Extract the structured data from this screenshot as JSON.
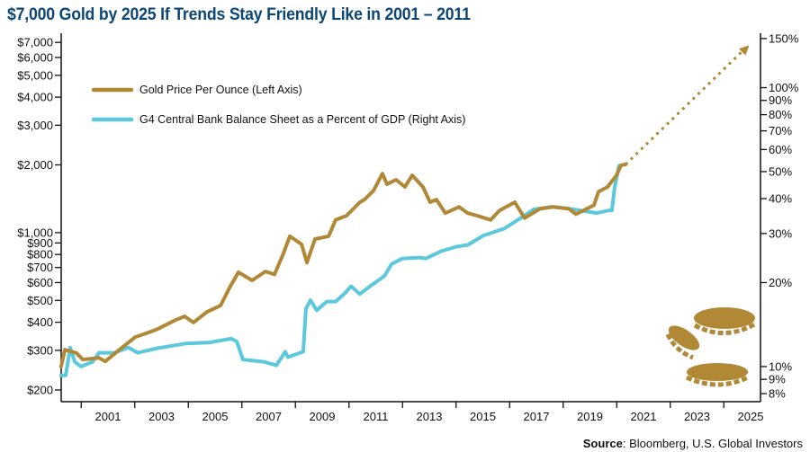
{
  "title": "$7,000 Gold by 2025 If Trends Stay Friendly Like in 2001 – 2011",
  "source": {
    "label": "Source",
    "text": ": Bloomberg, U.S. Global Investors"
  },
  "colors": {
    "gold": "#B08836",
    "blue": "#5BC8DC",
    "title": "#0B4677",
    "axis": "#111111"
  },
  "decoration": "gold-coins-icon",
  "chart_data": {
    "type": "line",
    "title": "$7,000 Gold by 2025 If Trends Stay Friendly Like in 2001 – 2011",
    "x_range": [
      1999.7,
      2025.8
    ],
    "x_tick_labels": [
      "2001",
      "2003",
      "2005",
      "2007",
      "2009",
      "2011",
      "2013",
      "2015",
      "2017",
      "2019",
      "2021",
      "2023",
      "2025"
    ],
    "left_axis": {
      "scale": "log",
      "range": [
        177,
        7700
      ],
      "ticks": [
        200,
        300,
        400,
        500,
        600,
        700,
        800,
        900,
        1000,
        2000,
        3000,
        4000,
        5000,
        6000,
        7000
      ],
      "tick_labels": [
        "$200",
        "$300",
        "$400",
        "$500",
        "$600",
        "$700",
        "$800",
        "$900",
        "$1,000",
        "$2,000",
        "$3,000",
        "$4,000",
        "$5,000",
        "$6,000",
        "$7,000"
      ]
    },
    "right_axis": {
      "scale": "log",
      "range": [
        7.5,
        157
      ],
      "ticks": [
        8,
        9,
        10,
        20,
        30,
        40,
        50,
        60,
        70,
        80,
        90,
        100,
        150
      ],
      "tick_labels": [
        "8%",
        "9%",
        "10%",
        "20%",
        "30%",
        "40%",
        "50%",
        "60%",
        "70%",
        "80%",
        "90%",
        "100%",
        "150%"
      ]
    },
    "grid": false,
    "legend_placement": "top-left",
    "series": [
      {
        "name": "Gold Price Per Ounce (Left Axis)",
        "axis": "left",
        "color": "#B08836",
        "points": [
          [
            1999.7,
            254
          ],
          [
            1999.84,
            302
          ],
          [
            2000.27,
            292
          ],
          [
            2000.51,
            273
          ],
          [
            2001.11,
            278
          ],
          [
            2001.35,
            268
          ],
          [
            2001.79,
            296
          ],
          [
            2002.46,
            343
          ],
          [
            2002.96,
            360
          ],
          [
            2003.3,
            373
          ],
          [
            2003.97,
            409
          ],
          [
            2004.31,
            425
          ],
          [
            2004.64,
            399
          ],
          [
            2005.15,
            445
          ],
          [
            2005.65,
            474
          ],
          [
            2005.99,
            570
          ],
          [
            2006.32,
            667
          ],
          [
            2006.83,
            614
          ],
          [
            2007.33,
            672
          ],
          [
            2007.67,
            652
          ],
          [
            2008.0,
            808
          ],
          [
            2008.24,
            964
          ],
          [
            2008.68,
            887
          ],
          [
            2008.88,
            736
          ],
          [
            2009.18,
            937
          ],
          [
            2009.69,
            964
          ],
          [
            2009.95,
            1139
          ],
          [
            2010.36,
            1190
          ],
          [
            2010.86,
            1366
          ],
          [
            2011.03,
            1402
          ],
          [
            2011.37,
            1538
          ],
          [
            2011.7,
            1829
          ],
          [
            2011.87,
            1642
          ],
          [
            2012.21,
            1718
          ],
          [
            2012.54,
            1596
          ],
          [
            2012.81,
            1798
          ],
          [
            2013.21,
            1596
          ],
          [
            2013.48,
            1366
          ],
          [
            2013.72,
            1402
          ],
          [
            2014.05,
            1221
          ],
          [
            2014.56,
            1302
          ],
          [
            2014.89,
            1221
          ],
          [
            2015.23,
            1190
          ],
          [
            2015.74,
            1139
          ],
          [
            2016.07,
            1253
          ],
          [
            2016.64,
            1366
          ],
          [
            2017.01,
            1160
          ],
          [
            2017.58,
            1276
          ],
          [
            2018.09,
            1302
          ],
          [
            2018.66,
            1276
          ],
          [
            2018.93,
            1207
          ],
          [
            2019.6,
            1325
          ],
          [
            2019.77,
            1520
          ],
          [
            2020.11,
            1596
          ],
          [
            2020.44,
            1798
          ],
          [
            2020.61,
            1990
          ],
          [
            2020.78,
            2008
          ]
        ]
      },
      {
        "name": "G4 Central Bank Balance Sheet as a Percent of GDP (Right Axis)",
        "axis": "right",
        "color": "#5BC8DC",
        "points": [
          [
            1999.7,
            9.3
          ],
          [
            1999.87,
            9.3
          ],
          [
            2000.04,
            11.7
          ],
          [
            2000.21,
            10.4
          ],
          [
            2000.44,
            10.0
          ],
          [
            2000.88,
            10.4
          ],
          [
            2001.11,
            11.2
          ],
          [
            2001.69,
            11.2
          ],
          [
            2002.22,
            11.7
          ],
          [
            2002.56,
            11.2
          ],
          [
            2003.23,
            11.6
          ],
          [
            2004.37,
            12.1
          ],
          [
            2005.25,
            12.2
          ],
          [
            2006.05,
            12.6
          ],
          [
            2006.26,
            12.3
          ],
          [
            2006.49,
            10.6
          ],
          [
            2007.27,
            10.4
          ],
          [
            2007.74,
            10.1
          ],
          [
            2008.07,
            11.3
          ],
          [
            2008.17,
            10.8
          ],
          [
            2008.74,
            11.3
          ],
          [
            2008.84,
            16.1
          ],
          [
            2009.01,
            17.3
          ],
          [
            2009.25,
            15.9
          ],
          [
            2009.62,
            17.1
          ],
          [
            2009.95,
            17.1
          ],
          [
            2010.29,
            18.3
          ],
          [
            2010.53,
            19.4
          ],
          [
            2010.86,
            18.2
          ],
          [
            2011.3,
            19.6
          ],
          [
            2011.77,
            21.1
          ],
          [
            2012.04,
            23.3
          ],
          [
            2012.44,
            24.4
          ],
          [
            2013.11,
            24.6
          ],
          [
            2013.32,
            24.4
          ],
          [
            2013.89,
            25.9
          ],
          [
            2014.46,
            26.9
          ],
          [
            2014.89,
            27.3
          ],
          [
            2015.47,
            29.5
          ],
          [
            2016.24,
            31.2
          ],
          [
            2016.91,
            34.3
          ],
          [
            2017.35,
            36.6
          ],
          [
            2018.02,
            37.4
          ],
          [
            2018.69,
            36.8
          ],
          [
            2019.7,
            35.5
          ],
          [
            2020.17,
            36.3
          ],
          [
            2020.27,
            36.3
          ],
          [
            2020.37,
            43.8
          ],
          [
            2020.54,
            52.5
          ]
        ]
      }
    ],
    "projection": {
      "axis": "left",
      "style": "dotted-arrow",
      "color": "#B08836",
      "points": [
        [
          2020.78,
          2008
        ],
        [
          2025.4,
          6800
        ]
      ]
    }
  }
}
